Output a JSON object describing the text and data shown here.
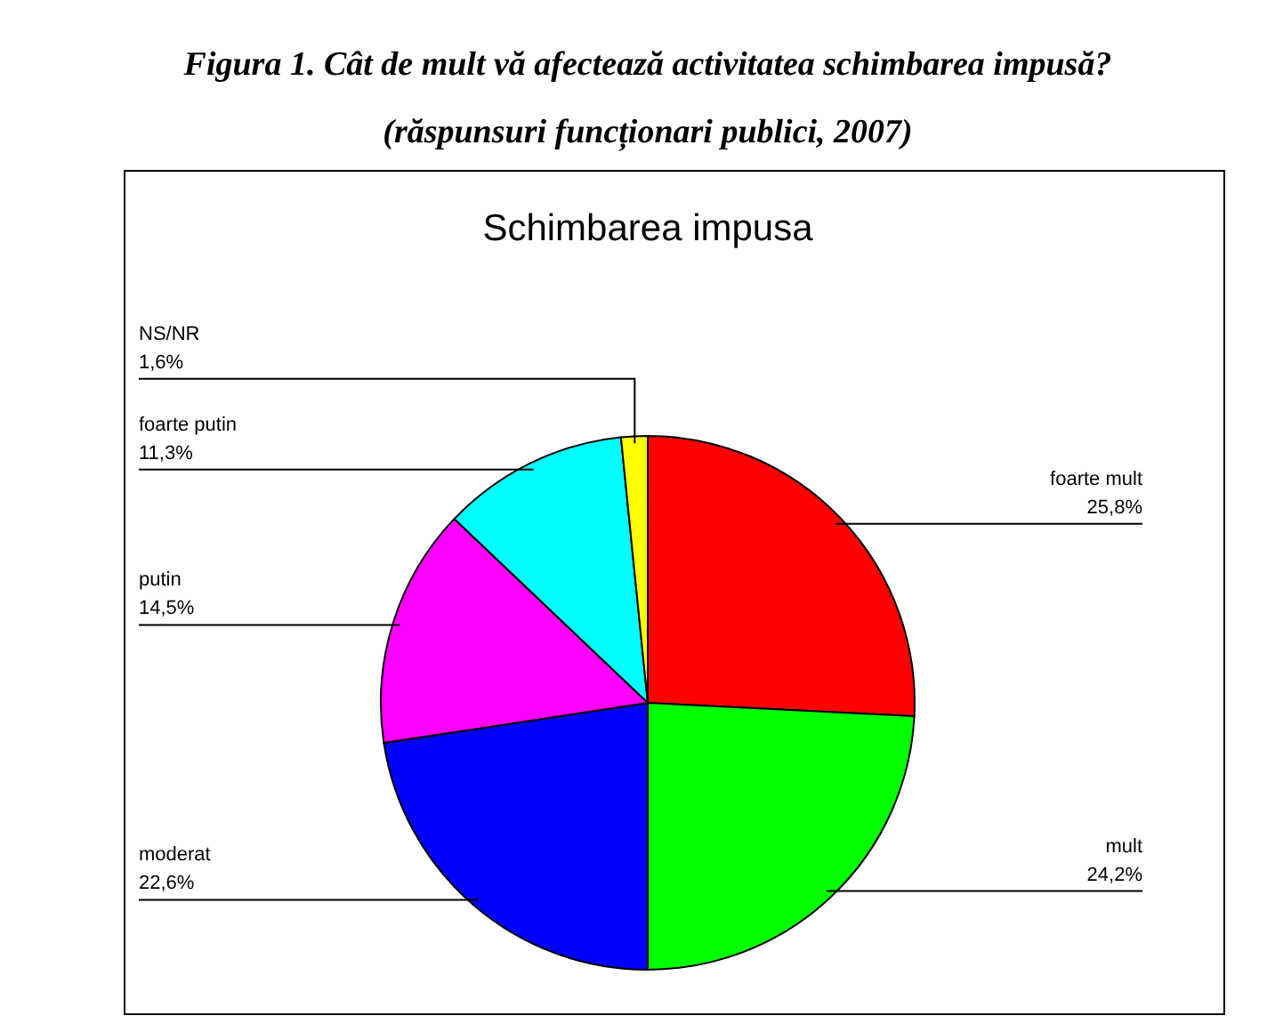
{
  "chart_data": {
    "type": "pie",
    "title": "Figura 1. Cât de mult vă afectează activitatea schimbarea impusă?",
    "subtitle": "(răspunsuri funcționari publici, 2007)",
    "annotations": [
      "Schimbarea impusa"
    ],
    "categories": [
      "foarte mult",
      "mult",
      "moderat",
      "putin",
      "foarte putin",
      "NS/NR"
    ],
    "values": [
      25.8,
      24.2,
      22.6,
      14.5,
      11.3,
      1.6
    ],
    "colors": [
      "#ff0000",
      "#00ff00",
      "#0000ff",
      "#ff00ff",
      "#00ffff",
      "#ffff00"
    ],
    "value_labels": [
      "25,8%",
      "24,2%",
      "22,6%",
      "14,5%",
      "11,3%",
      "1,6%"
    ]
  }
}
